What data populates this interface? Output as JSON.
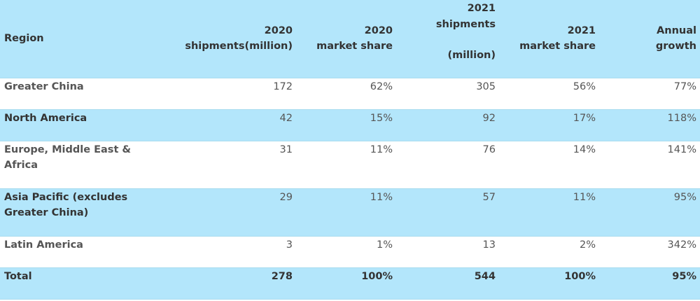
{
  "header": {
    "region": "Region",
    "shipments_2020": [
      "2020",
      "shipments(million)"
    ],
    "share_2020": [
      "2020",
      "market share"
    ],
    "shipments_2021": [
      "2021",
      "shipments",
      "(million)"
    ],
    "share_2021": [
      "2021",
      "market share"
    ],
    "growth": [
      "Annual",
      "growth"
    ]
  },
  "rows": [
    {
      "region": "Greater China",
      "shipments_2020": "172",
      "share_2020": "62%",
      "shipments_2021": "305",
      "share_2021": "56%",
      "growth": "77%"
    },
    {
      "region": "North America",
      "shipments_2020": "42",
      "share_2020": "15%",
      "shipments_2021": "92",
      "share_2021": "17%",
      "growth": "118%"
    },
    {
      "region": "Europe, Middle East & Africa",
      "shipments_2020": "31",
      "share_2020": "11%",
      "shipments_2021": "76",
      "share_2021": "14%",
      "growth": "141%"
    },
    {
      "region": "Asia Pacific (excludes Greater China)",
      "shipments_2020": "29",
      "share_2020": "11%",
      "shipments_2021": "57",
      "share_2021": "11%",
      "growth": "95%"
    },
    {
      "region": "Latin America",
      "shipments_2020": "3",
      "share_2020": "1%",
      "shipments_2021": "13",
      "share_2021": "2%",
      "growth": "342%"
    }
  ],
  "total": {
    "region": "Total",
    "shipments_2020": "278",
    "share_2020": "100%",
    "shipments_2021": "544",
    "share_2021": "100%",
    "growth": "95%"
  },
  "colors": {
    "header_bg": "#b3e6fb",
    "band_bg": "#b3e6fb",
    "border": "#a9dcef"
  }
}
